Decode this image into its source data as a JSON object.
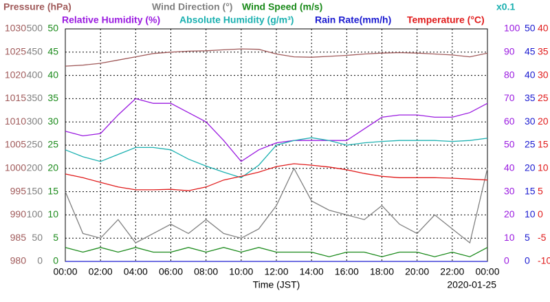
{
  "chart_data": {
    "type": "line",
    "xlabel": "Time (JST)",
    "date": "2020-01-25",
    "scale_note": "x0.1",
    "grid": true,
    "x": [
      0,
      1,
      2,
      3,
      4,
      5,
      6,
      7,
      8,
      9,
      10,
      11,
      12,
      13,
      14,
      15,
      16,
      17,
      18,
      19,
      20,
      21,
      22,
      23,
      24
    ],
    "xlim": [
      0,
      24
    ],
    "xticks": [
      {
        "value": 0,
        "label": "00:00"
      },
      {
        "value": 2,
        "label": "02:00"
      },
      {
        "value": 4,
        "label": "04:00"
      },
      {
        "value": 6,
        "label": "06:00"
      },
      {
        "value": 8,
        "label": "08:00"
      },
      {
        "value": 10,
        "label": "10:00"
      },
      {
        "value": 12,
        "label": "12:00"
      },
      {
        "value": 14,
        "label": "14:00"
      },
      {
        "value": 16,
        "label": "16:00"
      },
      {
        "value": 18,
        "label": "18:00"
      },
      {
        "value": 20,
        "label": "20:00"
      },
      {
        "value": 22,
        "label": "22:00"
      },
      {
        "value": 24,
        "label": "00:00"
      }
    ],
    "axes": [
      {
        "side": "left",
        "color": "#a05a5a",
        "ylim": [
          980,
          1030
        ],
        "yticks": [
          980,
          985,
          990,
          995,
          1000,
          1005,
          1010,
          1015,
          1020,
          1025,
          1030
        ]
      },
      {
        "side": "left",
        "color": "#808080",
        "ylim": [
          0,
          500
        ],
        "yticks": [
          0,
          50,
          100,
          150,
          200,
          250,
          300,
          350,
          400,
          450,
          500
        ]
      },
      {
        "side": "left",
        "color": "#1a8a1a",
        "ylim": [
          0,
          50
        ],
        "yticks": [
          0,
          5,
          10,
          15,
          20,
          25,
          30,
          35,
          40,
          45,
          50
        ]
      },
      {
        "side": "right",
        "color": "#9a1ae0",
        "ylim": [
          0,
          100
        ],
        "yticks": [
          0,
          10,
          20,
          30,
          40,
          50,
          60,
          70,
          80,
          90,
          100
        ]
      },
      {
        "side": "right",
        "color": "#1a1ad0",
        "ylim": [
          0,
          50
        ],
        "yticks": [
          0,
          5,
          10,
          15,
          20,
          25,
          30,
          35,
          40,
          45,
          50
        ]
      },
      {
        "side": "right",
        "color": "#e01a1a",
        "ylim": [
          -10,
          40
        ],
        "yticks": [
          -10,
          -5,
          0,
          5,
          10,
          15,
          20,
          25,
          30,
          35,
          40
        ]
      }
    ],
    "series": [
      {
        "name": "Pressure (hPa)",
        "color": "#a05a5a",
        "axis": 0,
        "values": [
          1022.0,
          1022.2,
          1022.6,
          1023.3,
          1024.0,
          1024.7,
          1025.0,
          1025.2,
          1025.3,
          1025.5,
          1025.7,
          1025.6,
          1024.6,
          1024.0,
          1023.9,
          1024.1,
          1024.3,
          1024.6,
          1024.8,
          1024.9,
          1024.8,
          1024.6,
          1024.4,
          1024.0,
          1024.8
        ]
      },
      {
        "name": "Wind Direction (°)",
        "color": "#808080",
        "axis": 1,
        "values": [
          150,
          60,
          50,
          90,
          40,
          60,
          80,
          60,
          90,
          60,
          50,
          70,
          120,
          200,
          130,
          110,
          100,
          90,
          120,
          80,
          60,
          100,
          70,
          40,
          200
        ]
      },
      {
        "name": "Wind Speed (m/s)",
        "color": "#1a8a1a",
        "axis": 2,
        "values": [
          3,
          2,
          3,
          2,
          3,
          2,
          2,
          3,
          2,
          3,
          2,
          3,
          2,
          2,
          2,
          1,
          2,
          2,
          1,
          2,
          2,
          1,
          2,
          1,
          3
        ]
      },
      {
        "name": "Relative Humidity (%)",
        "color": "#9a1ae0",
        "axis": 3,
        "values": [
          56,
          54,
          55,
          63,
          70,
          68,
          68,
          64,
          60,
          52,
          43,
          48,
          51,
          52,
          52,
          52,
          52,
          57,
          62,
          63,
          63,
          62,
          62,
          64,
          68
        ]
      },
      {
        "name": "Absolute Humidity (g/m³)",
        "color": "#1ab0b0",
        "axis": 4,
        "values": [
          24,
          22.5,
          21.5,
          23,
          24.5,
          24.5,
          24,
          22,
          20.5,
          19.2,
          18,
          20.7,
          25,
          26,
          26.6,
          26,
          25,
          25.5,
          25.8,
          26,
          26,
          26,
          25.8,
          26,
          26.5
        ]
      },
      {
        "name": "Rain Rate(mm/h)",
        "color": "#1a1ad0",
        "axis": 4,
        "values": [
          0,
          0,
          0,
          0,
          0,
          0,
          0,
          0,
          0,
          0,
          0,
          0,
          0,
          0,
          0,
          0,
          0,
          0,
          0,
          0,
          0,
          0,
          0,
          0,
          0
        ]
      },
      {
        "name": "Temperature (°C)",
        "color": "#e01a1a",
        "axis": 5,
        "values": [
          8.8,
          8,
          7,
          6,
          5.4,
          5.4,
          5.5,
          5.2,
          6,
          7.5,
          8.3,
          9.2,
          10.4,
          11,
          10.7,
          10.3,
          9.7,
          8.9,
          8.3,
          8,
          8,
          8,
          7.9,
          7.7,
          7.5
        ]
      }
    ]
  }
}
